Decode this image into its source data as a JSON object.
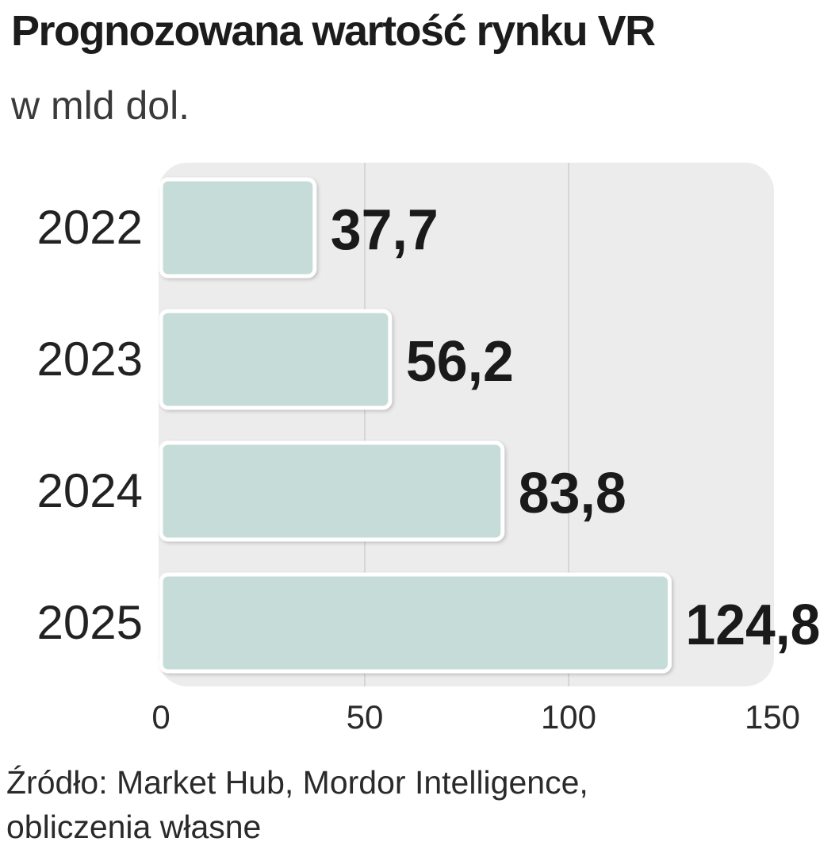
{
  "chart_data": {
    "type": "bar",
    "orientation": "horizontal",
    "title": "Prognozowana wartość rynku VR",
    "subtitle": "w mld dol.",
    "categories": [
      "2022",
      "2023",
      "2024",
      "2025"
    ],
    "values": [
      37.7,
      56.2,
      83.8,
      124.8
    ],
    "value_labels": [
      "37,7",
      "56,2",
      "83,8",
      "124,8"
    ],
    "xlim": [
      0,
      150
    ],
    "x_ticks": [
      "0",
      "50",
      "100",
      "150"
    ],
    "grid": true,
    "colors": {
      "bar": "#c5dcd8",
      "plot_bg": "#ececec",
      "grid": "#cfcfcf"
    }
  },
  "source": {
    "line1": "Źródło: Market Hub, Mordor Intelligence,",
    "line2": "obliczenia własne"
  }
}
